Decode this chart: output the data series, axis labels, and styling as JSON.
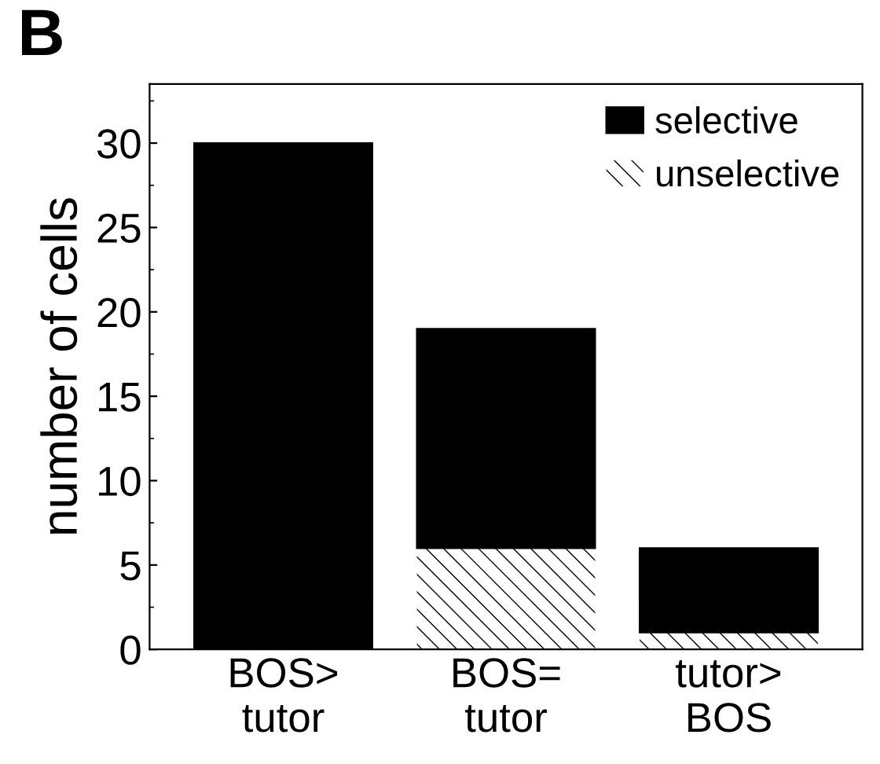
{
  "chart_data": {
    "type": "bar",
    "title": "B",
    "ylabel": "number of cells",
    "categories": [
      "BOS>\ntutor",
      "BOS=\ntutor",
      "tutor>\nBOS"
    ],
    "stacked": true,
    "series": [
      {
        "name": "unselective",
        "color": "#ffffff",
        "values": [
          0,
          6,
          1
        ]
      },
      {
        "name": "selective",
        "color": "#000000",
        "values": [
          30,
          13,
          5
        ]
      }
    ],
    "ylim": [
      0,
      33.5
    ],
    "yticks": [
      0,
      5,
      10,
      15,
      20,
      25,
      30
    ],
    "grid": false,
    "legend": "top right"
  }
}
